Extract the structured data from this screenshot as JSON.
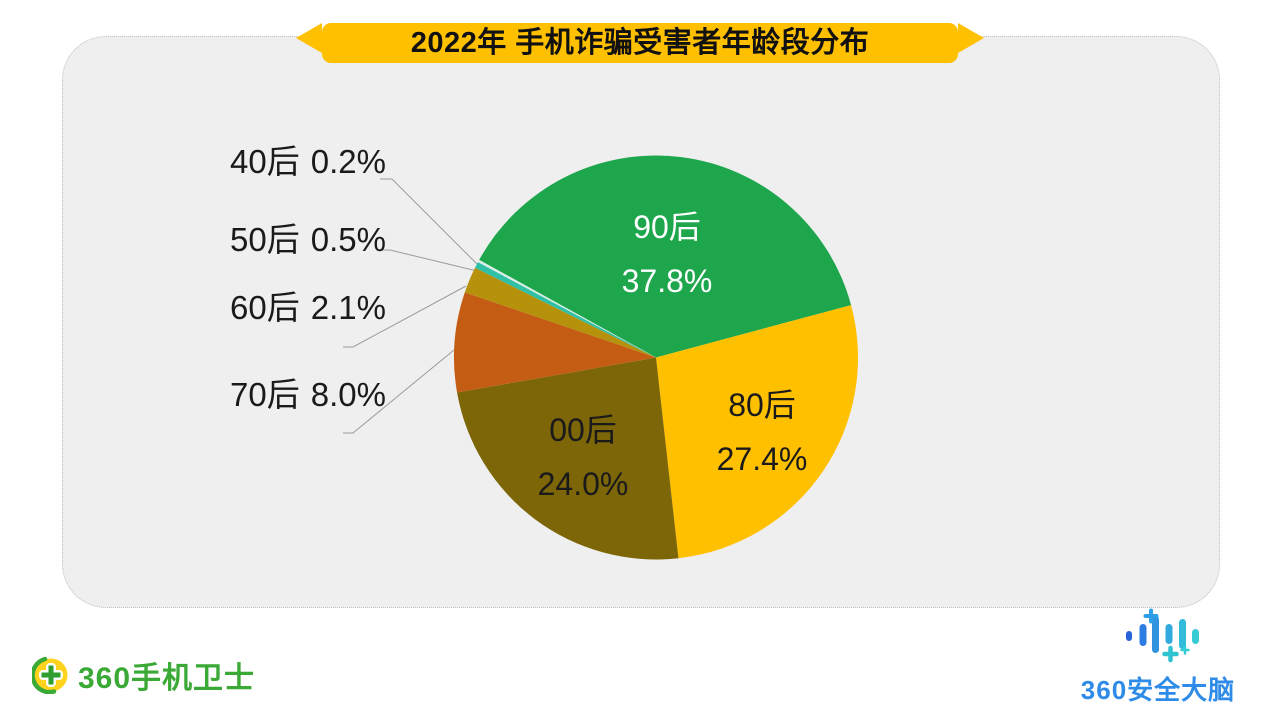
{
  "card": {
    "background": "#efefef",
    "border_color": "#c2c2c2"
  },
  "ribbon": {
    "fill": "#ffc000",
    "text_color": "#111111"
  },
  "chart_data": {
    "type": "pie",
    "title": "2022年 手机诈骗受害者年龄段分布",
    "start_angle_deg": -61.1,
    "legend_position": "none",
    "slices": [
      {
        "label": "90后",
        "value": 37.8,
        "pct_label": "37.8%",
        "color": "#1ea64c",
        "label_placement": "inside-white"
      },
      {
        "label": "80后",
        "value": 27.4,
        "pct_label": "27.4%",
        "color": "#ffc000",
        "label_placement": "inside-dark"
      },
      {
        "label": "00后",
        "value": 24.0,
        "pct_label": "24.0%",
        "color": "#7d6608",
        "label_placement": "inside-dark"
      },
      {
        "label": "70后",
        "value": 8.0,
        "pct_label": "8.0%",
        "color": "#c45d13",
        "label_placement": "callout"
      },
      {
        "label": "60后",
        "value": 2.1,
        "pct_label": "2.1%",
        "color": "#b5910c",
        "label_placement": "callout"
      },
      {
        "label": "50后",
        "value": 0.5,
        "pct_label": "0.5%",
        "color": "#2fc0a6",
        "label_placement": "callout"
      },
      {
        "label": "40后",
        "value": 0.2,
        "pct_label": "0.2%",
        "color": "#d8eee6",
        "label_placement": "callout"
      }
    ]
  },
  "footer": {
    "left_logo": {
      "text": "360手机卫士",
      "text_color": "#3aa935",
      "icon": "shield-plus-ball-icon",
      "icon_colors": {
        "ball": "#ffd21c",
        "swoosh": "#3aa935",
        "cross": "#2f9e30"
      }
    },
    "right_logo": {
      "text": "360安全大脑",
      "text_color": "#2e8ce8",
      "icon": "brain-wave-bars-icon",
      "icon_colors": {
        "bars": [
          "#2563d6",
          "#2d7ce2",
          "#2f93e0",
          "#2fa9de",
          "#32bcda",
          "#36ccd6"
        ]
      }
    }
  }
}
